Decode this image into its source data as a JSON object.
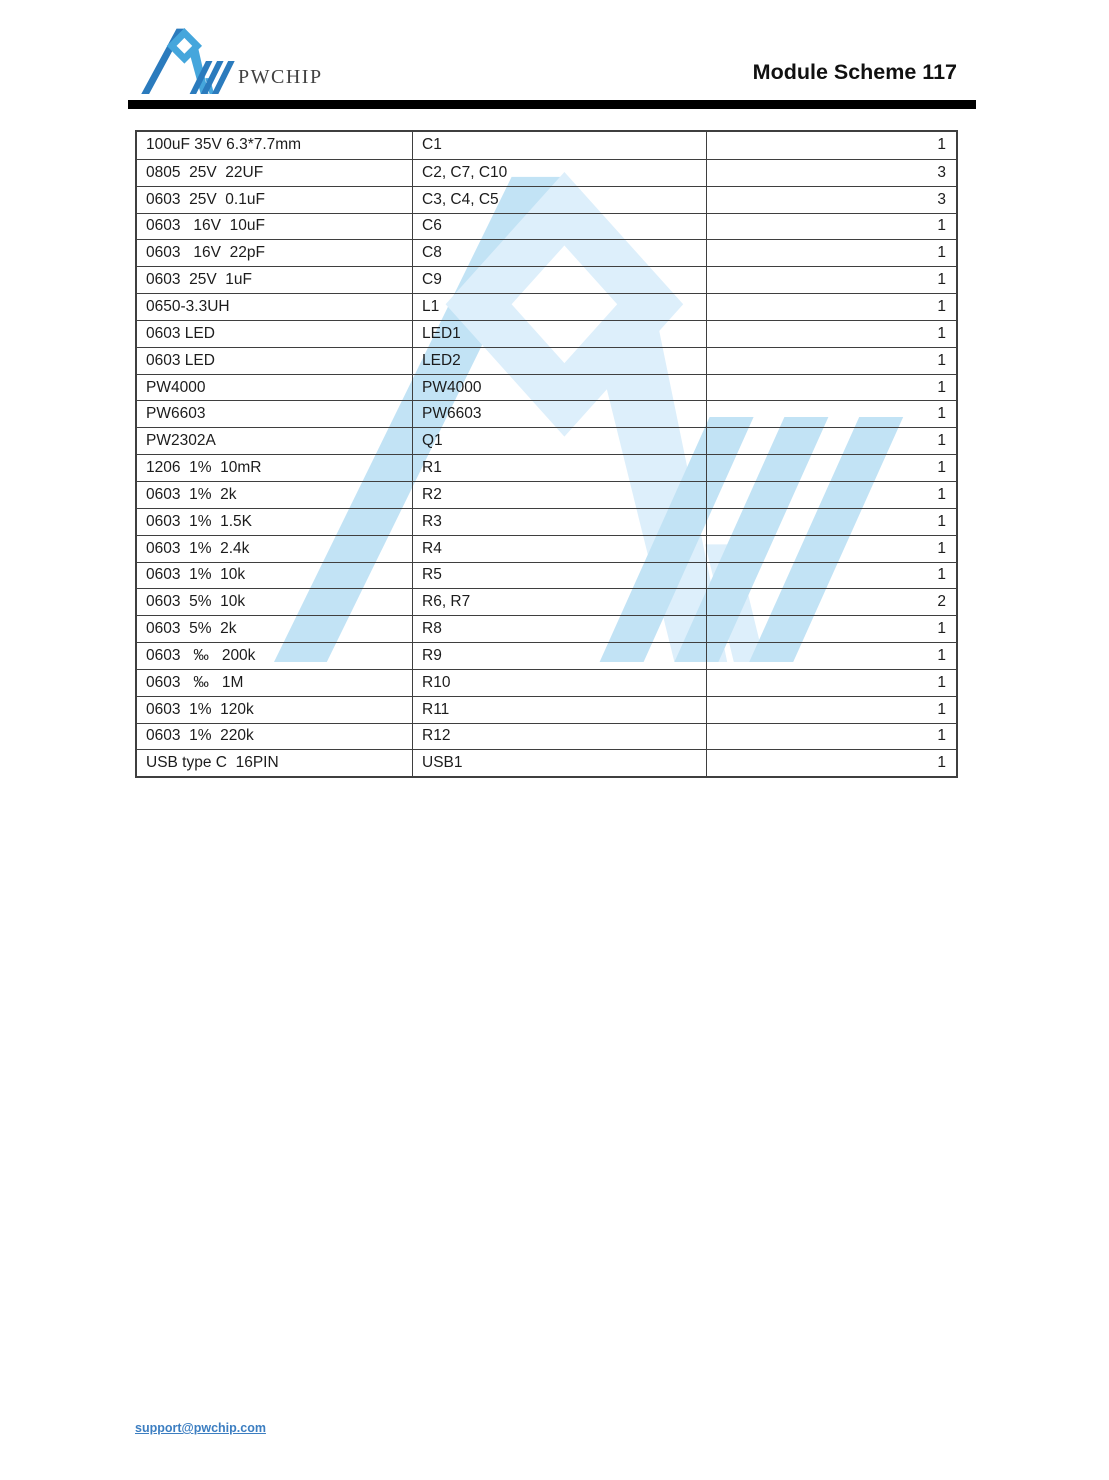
{
  "header": {
    "brand": "PWCHIP",
    "title": "Module Scheme 117"
  },
  "table": {
    "columns": [
      "part_spec",
      "designator",
      "quantity"
    ],
    "rows": [
      {
        "spec": "100uF 35V 6.3*7.7mm",
        "designator": "C1",
        "qty": "1"
      },
      {
        "spec": "0805  25V  22UF",
        "designator": "C2, C7, C10",
        "qty": "3"
      },
      {
        "spec": "0603  25V  0.1uF",
        "designator": "C3, C4, C5",
        "qty": "3"
      },
      {
        "spec": "0603   16V  10uF",
        "designator": "C6",
        "qty": "1"
      },
      {
        "spec": "0603   16V  22pF",
        "designator": "C8",
        "qty": "1"
      },
      {
        "spec": "0603  25V  1uF",
        "designator": "C9",
        "qty": "1"
      },
      {
        "spec": "0650-3.3UH",
        "designator": "L1",
        "qty": "1"
      },
      {
        "spec": "0603 LED",
        "designator": "LED1",
        "qty": "1"
      },
      {
        "spec": "0603 LED",
        "designator": "LED2",
        "qty": "1"
      },
      {
        "spec": "PW4000",
        "designator": "PW4000",
        "qty": "1"
      },
      {
        "spec": "PW6603",
        "designator": "PW6603",
        "qty": "1"
      },
      {
        "spec": "PW2302A",
        "designator": "Q1",
        "qty": "1"
      },
      {
        "spec": "1206  1%  10mR",
        "designator": "R1",
        "qty": "1"
      },
      {
        "spec": "0603  1%  2k",
        "designator": "R2",
        "qty": "1"
      },
      {
        "spec": "0603  1%  1.5K",
        "designator": "R3",
        "qty": "1"
      },
      {
        "spec": "0603  1%  2.4k",
        "designator": "R4",
        "qty": "1"
      },
      {
        "spec": "0603  1%  10k",
        "designator": "R5",
        "qty": "1"
      },
      {
        "spec": "0603  5%  10k",
        "designator": "R6, R7",
        "qty": "2"
      },
      {
        "spec": "0603  5%  2k",
        "designator": "R8",
        "qty": "1"
      },
      {
        "spec": "0603   ‰   200k",
        "designator": "R9",
        "qty": "1"
      },
      {
        "spec": "0603   ‰   1M",
        "designator": "R10",
        "qty": "1"
      },
      {
        "spec": "0603  1%  120k",
        "designator": "R11",
        "qty": "1"
      },
      {
        "spec": "0603  1%  220k",
        "designator": "R12",
        "qty": "1"
      },
      {
        "spec": "USB type C  16PIN",
        "designator": "USB1",
        "qty": "1"
      }
    ]
  },
  "footer": {
    "email": "support@pwchip.com"
  },
  "colors": {
    "brand-dark": "#2b7bbd",
    "brand-light": "#45a6dc",
    "wm-dark": "#c2e3f5",
    "wm-light": "#ddeffb",
    "link-color": "#3c7ec1"
  }
}
